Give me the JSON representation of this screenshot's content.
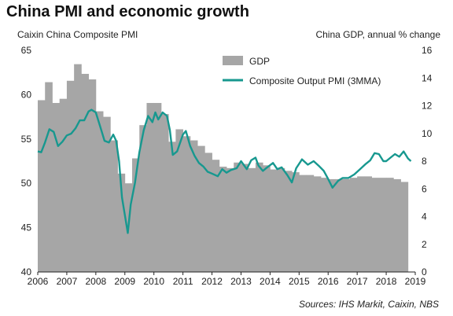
{
  "chart_data": {
    "type": "bar+line",
    "title": "China PMI and economic growth",
    "ylabel_left": "Caixin China Composite PMI",
    "ylabel_right": "China GDP, annual % change",
    "source": "Sources: IHS Markit, Caixin, NBS",
    "x_range": [
      2006,
      2019
    ],
    "x_ticks": [
      "2006",
      "2007",
      "2008",
      "2009",
      "2010",
      "2011",
      "2012",
      "2013",
      "2014",
      "2015",
      "2016",
      "2017",
      "2018",
      "2019"
    ],
    "ylim_left": [
      40,
      65
    ],
    "yticks_left": [
      "40",
      "45",
      "50",
      "55",
      "60",
      "65"
    ],
    "ylim_right": [
      0,
      16
    ],
    "yticks_right": [
      "0",
      "2",
      "4",
      "6",
      "8",
      "10",
      "12",
      "14",
      "16"
    ],
    "legend_position": "top-center",
    "series": [
      {
        "name": "GDP",
        "kind": "bar",
        "axis": "right",
        "color": "#a6a6a6",
        "x": [
          "2006 Q1",
          "2006 Q2",
          "2006 Q3",
          "2006 Q4",
          "2007 Q1",
          "2007 Q2",
          "2007 Q3",
          "2007 Q4",
          "2008 Q1",
          "2008 Q2",
          "2008 Q3",
          "2008 Q4",
          "2009 Q1",
          "2009 Q2",
          "2009 Q3",
          "2009 Q4",
          "2010 Q1",
          "2010 Q2",
          "2010 Q3",
          "2010 Q4",
          "2011 Q1",
          "2011 Q2",
          "2011 Q3",
          "2011 Q4",
          "2012 Q1",
          "2012 Q2",
          "2012 Q3",
          "2012 Q4",
          "2013 Q1",
          "2013 Q2",
          "2013 Q3",
          "2013 Q4",
          "2014 Q1",
          "2014 Q2",
          "2014 Q3",
          "2014 Q4",
          "2015 Q1",
          "2015 Q2",
          "2015 Q3",
          "2015 Q4",
          "2016 Q1",
          "2016 Q2",
          "2016 Q3",
          "2016 Q4",
          "2017 Q1",
          "2017 Q2",
          "2017 Q3",
          "2017 Q4",
          "2018 Q1",
          "2018 Q2",
          "2018 Q3"
        ],
        "values": [
          12.4,
          13.7,
          12.2,
          12.5,
          13.8,
          15.0,
          14.3,
          13.9,
          11.6,
          11.2,
          9.5,
          7.1,
          6.4,
          8.2,
          10.6,
          12.2,
          12.2,
          11.4,
          9.4,
          10.3,
          9.8,
          9.5,
          9.1,
          8.6,
          8.1,
          7.6,
          7.5,
          7.9,
          7.8,
          7.5,
          7.9,
          7.7,
          7.4,
          7.5,
          7.3,
          7.2,
          7.0,
          7.0,
          6.9,
          6.8,
          6.7,
          6.7,
          6.7,
          6.8,
          6.9,
          6.9,
          6.8,
          6.8,
          6.8,
          6.7,
          6.5
        ]
      },
      {
        "name": "Composite Output PMI (3MMA)",
        "kind": "line",
        "axis": "left",
        "color": "#17988f",
        "x": [
          2006.0,
          2006.12,
          2006.25,
          2006.4,
          2006.55,
          2006.7,
          2006.85,
          2007.0,
          2007.15,
          2007.3,
          2007.45,
          2007.6,
          2007.75,
          2007.85,
          2008.0,
          2008.15,
          2008.3,
          2008.45,
          2008.6,
          2008.7,
          2008.8,
          2008.9,
          2009.0,
          2009.1,
          2009.2,
          2009.35,
          2009.5,
          2009.65,
          2009.8,
          2009.95,
          2010.05,
          2010.15,
          2010.3,
          2010.45,
          2010.55,
          2010.65,
          2010.8,
          2011.0,
          2011.1,
          2011.25,
          2011.4,
          2011.55,
          2011.7,
          2011.85,
          2012.0,
          2012.2,
          2012.35,
          2012.5,
          2012.65,
          2012.85,
          2013.0,
          2013.2,
          2013.35,
          2013.5,
          2013.6,
          2013.75,
          2013.9,
          2014.1,
          2014.25,
          2014.4,
          2014.6,
          2014.75,
          2014.9,
          2015.1,
          2015.3,
          2015.5,
          2015.7,
          2015.85,
          2016.0,
          2016.15,
          2016.35,
          2016.5,
          2016.7,
          2016.9,
          2017.1,
          2017.3,
          2017.45,
          2017.6,
          2017.75,
          2017.9,
          2018.0,
          2018.15,
          2018.3,
          2018.45,
          2018.6,
          2018.75,
          2018.85
        ],
        "values": [
          53.6,
          53.5,
          54.6,
          56.1,
          55.8,
          54.2,
          54.7,
          55.4,
          55.6,
          56.2,
          57.1,
          57.1,
          58.1,
          58.3,
          58.0,
          56.4,
          54.8,
          54.6,
          55.5,
          54.8,
          52.5,
          48.4,
          46.4,
          44.4,
          47.6,
          50.1,
          53.5,
          56.0,
          57.6,
          56.9,
          58.0,
          57.2,
          58.0,
          57.6,
          56.0,
          53.2,
          53.6,
          55.5,
          55.9,
          54.2,
          53.1,
          52.3,
          51.9,
          51.3,
          51.1,
          50.8,
          51.6,
          51.2,
          51.5,
          51.7,
          52.5,
          51.6,
          52.6,
          52.9,
          52.0,
          51.4,
          51.8,
          52.3,
          51.6,
          51.8,
          50.9,
          50.1,
          51.7,
          52.7,
          52.1,
          52.5,
          51.9,
          51.4,
          50.5,
          49.5,
          50.3,
          50.6,
          50.6,
          51.0,
          51.6,
          52.2,
          52.6,
          53.4,
          53.3,
          52.5,
          52.5,
          52.9,
          53.3,
          53.0,
          53.6,
          52.8,
          52.5
        ]
      }
    ]
  }
}
